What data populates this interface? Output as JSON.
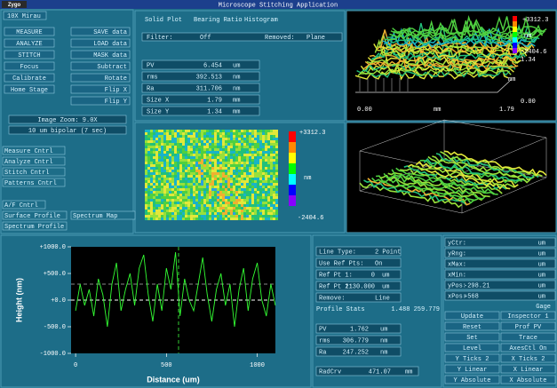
{
  "title_bar": {
    "logo": "Zygo",
    "title": "Microscope Stitching Application"
  },
  "left_panel": {
    "objective": "10X Mirau",
    "buttons_left": [
      "MEASURE",
      "ANALYZE",
      "STITCH",
      "Focus",
      "Calibrate",
      "Home Stage"
    ],
    "buttons_right": [
      "SAVE data",
      "LOAD data",
      "MASK data",
      "Subtract",
      "Rotate",
      "Flip X",
      "Flip Y"
    ],
    "image_zoom": "Image Zoom: 9.0X",
    "mode": "10 um bipolar (7 sec)",
    "controls": [
      "Measure Cntrl",
      "Analyze Cntrl",
      "Stitch Cntrl",
      "Patterns Cntrl"
    ],
    "af": "A/F Cntrl",
    "analysis": [
      "Surface Profile",
      "Spectrum Map",
      "Spectrum Profile"
    ]
  },
  "stats_panel": {
    "tabs": [
      "Solid Plot",
      "Bearing Ratio",
      "Histogram"
    ],
    "filter_label": "Filter:",
    "filter": "Off",
    "removed_label": "Removed:",
    "removed": "Plane",
    "rows": [
      [
        "PV",
        "6.454",
        "um"
      ],
      [
        "rms",
        "392.513",
        "nm"
      ],
      [
        "Ra",
        "311.706",
        "nm"
      ],
      [
        "Size X",
        "1.79",
        "mm"
      ],
      [
        "Size Y",
        "1.34",
        "mm"
      ]
    ]
  },
  "map2d": {
    "max": "+3312.3",
    "unit": "nm",
    "min": "-2404.6"
  },
  "plot3d": {
    "max": "+3312.3",
    "unit": "nm",
    "min": "-2404.6",
    "y_max": "1.34",
    "y_unit": "mm",
    "y_min": "0.00",
    "x_min": "0.00",
    "x_unit": "mm",
    "x_max": "1.79"
  },
  "profile": {
    "y_label": "Height (nm)",
    "x_label": "Distance (um)",
    "ylim": [
      -1000,
      1000
    ],
    "yticks": [
      {
        "value": 1000,
        "label": "+1000.0"
      },
      {
        "value": 500,
        "label": "+500.0"
      },
      {
        "value": 0,
        "label": "+0.0"
      },
      {
        "value": -500,
        "label": "-500.0"
      },
      {
        "value": -1000,
        "label": "-1000.0"
      }
    ],
    "xlim": [
      -25,
      1100
    ],
    "xticks": [
      0,
      500,
      1000
    ],
    "x": [
      0,
      25,
      50,
      75,
      100,
      125,
      150,
      175,
      200,
      225,
      250,
      275,
      300,
      325,
      350,
      375,
      400,
      425,
      450,
      475,
      500,
      525,
      550,
      575,
      600,
      625,
      650,
      675,
      700,
      725,
      750,
      775,
      800,
      825,
      850,
      875,
      900,
      925,
      950,
      975,
      1000,
      1025,
      1050,
      1075,
      1100
    ],
    "values": [
      -200,
      300,
      -100,
      200,
      -300,
      400,
      100,
      -500,
      300,
      700,
      -200,
      200,
      500,
      -100,
      600,
      850,
      100,
      -400,
      300,
      -200,
      600,
      200,
      900,
      -300,
      400,
      0,
      -200,
      300,
      800,
      100,
      -400,
      200,
      500,
      -100,
      300,
      -500,
      200,
      600,
      -200,
      400,
      700,
      0,
      -300,
      300,
      -100
    ]
  },
  "profile_panel": {
    "rows": [
      [
        "Line Type:",
        "2 Point"
      ],
      [
        "Use Ref Pts:",
        "On"
      ],
      [
        "Ref Pt 1:",
        "0",
        "um"
      ],
      [
        "Ref Pt 2:",
        "1130.000",
        "um"
      ],
      [
        "Remove:",
        "Line"
      ]
    ],
    "stats_label": "Profile Stats",
    "stats_value": "1.488 259.779",
    "results": [
      [
        "PV",
        "1.762",
        "um"
      ],
      [
        "rms",
        "306.779",
        "nm"
      ],
      [
        "Ra",
        "247.252",
        "nm"
      ]
    ],
    "radcrv": [
      "RadCrv",
      "471.07",
      "mm"
    ]
  },
  "axes_panel": {
    "fields": [
      {
        "label": "yCtr:",
        "unit": "um"
      },
      {
        "label": "yRng:",
        "unit": "um"
      },
      {
        "label": "xMax:",
        "unit": "um"
      },
      {
        "label": "xMin:",
        "unit": "um"
      },
      {
        "label": "yPos:",
        "value": "-298.21",
        "unit": "um"
      },
      {
        "label": "xPos:",
        "value": "+568",
        "unit": "um"
      }
    ],
    "gage": "Gage",
    "buttons": [
      [
        "Update",
        "Inspector 1"
      ],
      [
        "Reset",
        "Prof PV"
      ],
      [
        "Set",
        "Trace"
      ],
      [
        "Level",
        "AxesCtl On"
      ],
      [
        "Y Ticks 2",
        "X Ticks 2"
      ],
      [
        "Y Linear",
        "X Linear"
      ],
      [
        "Y Absolute",
        "X Absolute"
      ]
    ]
  }
}
